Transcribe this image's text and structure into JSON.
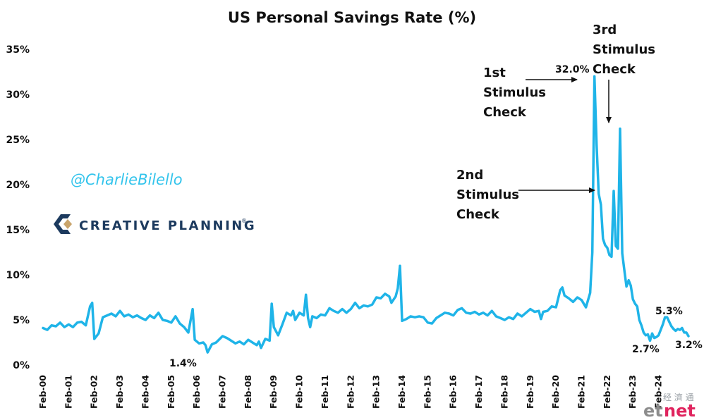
{
  "chart_data": {
    "type": "line",
    "title": "US Personal Savings Rate (%)",
    "xlabel": "",
    "ylabel": "",
    "ylim": [
      0,
      35
    ],
    "y_ticks": [
      "0%",
      "5%",
      "10%",
      "15%",
      "20%",
      "25%",
      "30%",
      "35%"
    ],
    "x_tick_labels": [
      "Feb-00",
      "Feb-01",
      "Feb-02",
      "Feb-03",
      "Feb-04",
      "Feb-05",
      "Feb-06",
      "Feb-07",
      "Feb-08",
      "Feb-09",
      "Feb-10",
      "Feb-11",
      "Feb-12",
      "Feb-13",
      "Feb-14",
      "Feb-15",
      "Feb-16",
      "Feb-17",
      "Feb-18",
      "Feb-19",
      "Feb-20",
      "Feb-21",
      "Feb-22",
      "Feb-23",
      "Feb-24"
    ],
    "grid": false,
    "line_color": "#1fb4e8",
    "series": [
      {
        "points": [
          [
            "2000-02",
            4.1
          ],
          [
            "2000-04",
            3.9
          ],
          [
            "2000-06",
            4.4
          ],
          [
            "2000-08",
            4.3
          ],
          [
            "2000-10",
            4.7
          ],
          [
            "2000-12",
            4.2
          ],
          [
            "2001-02",
            4.5
          ],
          [
            "2001-04",
            4.2
          ],
          [
            "2001-06",
            4.7
          ],
          [
            "2001-08",
            4.8
          ],
          [
            "2001-10",
            4.4
          ],
          [
            "2001-12",
            6.5
          ],
          [
            "2002-01",
            6.9
          ],
          [
            "2002-02",
            2.9
          ],
          [
            "2002-04",
            3.5
          ],
          [
            "2002-06",
            5.3
          ],
          [
            "2002-08",
            5.5
          ],
          [
            "2002-10",
            5.7
          ],
          [
            "2002-12",
            5.4
          ],
          [
            "2003-02",
            6.0
          ],
          [
            "2003-04",
            5.4
          ],
          [
            "2003-06",
            5.6
          ],
          [
            "2003-08",
            5.3
          ],
          [
            "2003-10",
            5.5
          ],
          [
            "2003-12",
            5.2
          ],
          [
            "2004-02",
            5.0
          ],
          [
            "2004-04",
            5.5
          ],
          [
            "2004-06",
            5.2
          ],
          [
            "2004-08",
            5.8
          ],
          [
            "2004-10",
            5.0
          ],
          [
            "2004-12",
            4.9
          ],
          [
            "2005-02",
            4.7
          ],
          [
            "2005-04",
            5.4
          ],
          [
            "2005-06",
            4.6
          ],
          [
            "2005-08",
            4.2
          ],
          [
            "2005-10",
            3.6
          ],
          [
            "2005-12",
            6.2
          ],
          [
            "2006-01",
            2.8
          ],
          [
            "2006-03",
            2.4
          ],
          [
            "2006-05",
            2.5
          ],
          [
            "2006-06",
            2.2
          ],
          [
            "2006-07",
            1.4
          ],
          [
            "2006-09",
            2.3
          ],
          [
            "2006-11",
            2.5
          ],
          [
            "2007-02",
            3.2
          ],
          [
            "2007-04",
            3.0
          ],
          [
            "2007-06",
            2.7
          ],
          [
            "2007-08",
            2.4
          ],
          [
            "2007-10",
            2.6
          ],
          [
            "2007-12",
            2.3
          ],
          [
            "2008-02",
            2.8
          ],
          [
            "2008-04",
            2.5
          ],
          [
            "2008-06",
            2.2
          ],
          [
            "2008-07",
            2.6
          ],
          [
            "2008-08",
            1.9
          ],
          [
            "2008-10",
            2.9
          ],
          [
            "2008-12",
            2.7
          ],
          [
            "2009-01",
            6.8
          ],
          [
            "2009-02",
            4.2
          ],
          [
            "2009-04",
            3.3
          ],
          [
            "2009-06",
            4.5
          ],
          [
            "2009-08",
            5.8
          ],
          [
            "2009-10",
            5.5
          ],
          [
            "2009-11",
            6.0
          ],
          [
            "2009-12",
            5.0
          ],
          [
            "2010-02",
            5.8
          ],
          [
            "2010-04",
            5.5
          ],
          [
            "2010-05",
            7.8
          ],
          [
            "2010-06",
            5.2
          ],
          [
            "2010-07",
            4.2
          ],
          [
            "2010-08",
            5.4
          ],
          [
            "2010-10",
            5.2
          ],
          [
            "2010-12",
            5.6
          ],
          [
            "2011-02",
            5.5
          ],
          [
            "2011-04",
            6.3
          ],
          [
            "2011-06",
            6.0
          ],
          [
            "2011-08",
            5.8
          ],
          [
            "2011-10",
            6.2
          ],
          [
            "2011-12",
            5.8
          ],
          [
            "2012-02",
            6.2
          ],
          [
            "2012-04",
            6.9
          ],
          [
            "2012-06",
            6.3
          ],
          [
            "2012-08",
            6.6
          ],
          [
            "2012-10",
            6.5
          ],
          [
            "2012-12",
            6.7
          ],
          [
            "2013-02",
            7.5
          ],
          [
            "2013-04",
            7.4
          ],
          [
            "2013-06",
            7.9
          ],
          [
            "2013-08",
            7.6
          ],
          [
            "2013-09",
            6.9
          ],
          [
            "2013-11",
            7.6
          ],
          [
            "2013-12",
            8.5
          ],
          [
            "2014-01",
            11.0
          ],
          [
            "2014-02",
            4.9
          ],
          [
            "2014-04",
            5.1
          ],
          [
            "2014-06",
            5.4
          ],
          [
            "2014-08",
            5.3
          ],
          [
            "2014-10",
            5.4
          ],
          [
            "2014-12",
            5.3
          ],
          [
            "2015-02",
            4.7
          ],
          [
            "2015-04",
            4.6
          ],
          [
            "2015-06",
            5.2
          ],
          [
            "2015-08",
            5.5
          ],
          [
            "2015-10",
            5.8
          ],
          [
            "2015-12",
            5.7
          ],
          [
            "2016-02",
            5.5
          ],
          [
            "2016-04",
            6.1
          ],
          [
            "2016-06",
            6.3
          ],
          [
            "2016-08",
            5.8
          ],
          [
            "2016-10",
            5.7
          ],
          [
            "2016-12",
            5.9
          ],
          [
            "2017-02",
            5.6
          ],
          [
            "2017-04",
            5.8
          ],
          [
            "2017-06",
            5.5
          ],
          [
            "2017-08",
            6.0
          ],
          [
            "2017-10",
            5.4
          ],
          [
            "2017-12",
            5.2
          ],
          [
            "2018-02",
            5.0
          ],
          [
            "2018-04",
            5.3
          ],
          [
            "2018-06",
            5.1
          ],
          [
            "2018-08",
            5.7
          ],
          [
            "2018-10",
            5.4
          ],
          [
            "2018-12",
            5.8
          ],
          [
            "2019-02",
            6.2
          ],
          [
            "2019-04",
            5.9
          ],
          [
            "2019-06",
            6.0
          ],
          [
            "2019-07",
            5.1
          ],
          [
            "2019-08",
            5.9
          ],
          [
            "2019-10",
            6.0
          ],
          [
            "2019-12",
            6.5
          ],
          [
            "2020-02",
            6.4
          ],
          [
            "2020-04",
            8.3
          ],
          [
            "2020-05",
            8.6
          ],
          [
            "2020-06",
            7.7
          ],
          [
            "2020-08",
            7.4
          ],
          [
            "2020-10",
            7.0
          ],
          [
            "2020-12",
            7.5
          ],
          [
            "2021-02",
            7.2
          ],
          [
            "2021-04",
            6.4
          ],
          [
            "2021-06",
            8.0
          ],
          [
            "2021-07",
            12.5
          ],
          [
            "2021-08",
            32.0
          ],
          [
            "2021-09",
            24.5
          ],
          [
            "2021-10",
            19.0
          ],
          [
            "2021-11",
            17.8
          ],
          [
            "2021-12",
            14.0
          ],
          [
            "2022-01",
            13.3
          ],
          [
            "2022-02",
            13.0
          ],
          [
            "2022-03",
            12.2
          ],
          [
            "2022-04",
            12.0
          ],
          [
            "2022-05",
            19.3
          ],
          [
            "2022-06",
            13.2
          ],
          [
            "2022-07",
            12.9
          ],
          [
            "2022-08",
            26.2
          ],
          [
            "2022-09",
            12.4
          ],
          [
            "2022-10",
            10.5
          ],
          [
            "2022-11",
            8.7
          ],
          [
            "2022-12",
            9.4
          ],
          [
            "2023-01",
            8.8
          ],
          [
            "2023-02",
            7.3
          ],
          [
            "2023-03",
            6.8
          ],
          [
            "2023-04",
            6.5
          ],
          [
            "2023-05",
            5.0
          ],
          [
            "2023-06",
            4.4
          ],
          [
            "2023-07",
            3.6
          ],
          [
            "2023-08",
            3.3
          ],
          [
            "2023-09",
            3.4
          ],
          [
            "2023-10",
            2.7
          ],
          [
            "2023-11",
            3.5
          ],
          [
            "2023-12",
            3.0
          ],
          [
            "2024-01",
            3.1
          ],
          [
            "2024-02",
            3.3
          ],
          [
            "2024-03",
            3.9
          ],
          [
            "2024-04",
            4.5
          ],
          [
            "2024-05",
            5.3
          ],
          [
            "2024-06",
            5.3
          ],
          [
            "2024-07",
            4.8
          ],
          [
            "2024-08",
            4.3
          ],
          [
            "2024-09",
            4.0
          ],
          [
            "2024-10",
            3.8
          ],
          [
            "2024-11",
            4.0
          ],
          [
            "2024-12",
            3.9
          ],
          [
            "2025-01",
            4.1
          ],
          [
            "2025-02",
            3.6
          ],
          [
            "2025-03",
            3.6
          ],
          [
            "2025-04",
            3.2
          ]
        ]
      }
    ],
    "annotations": {
      "first_line1": "1st",
      "first_line2": "Stimulus",
      "first_line3": "Check",
      "second_line1": "2nd",
      "second_line2": "Stimulus",
      "second_line3": "Check",
      "third_line1": "3rd",
      "third_line2": "Stimulus",
      "third_line3": "Check",
      "peak_label": "32.0%",
      "low_2005_label": "1.4%",
      "low_2022_label": "2.7%",
      "high_2023_label": "5.3%",
      "latest_label": "3.2%"
    }
  },
  "branding": {
    "handle": "@CharlieBilello",
    "logo_text": "CREATIVE PLANNING",
    "trademark": "®",
    "colors": {
      "handle": "#33c4ec",
      "logo_navy": "#1c3a5e",
      "logo_gold": "#c9a46b"
    }
  },
  "watermark": {
    "chinese": "经 濟 通",
    "et": "et",
    "net": "net",
    "colors": {
      "et": "#8c8c8c",
      "net": "#e0245e"
    }
  }
}
